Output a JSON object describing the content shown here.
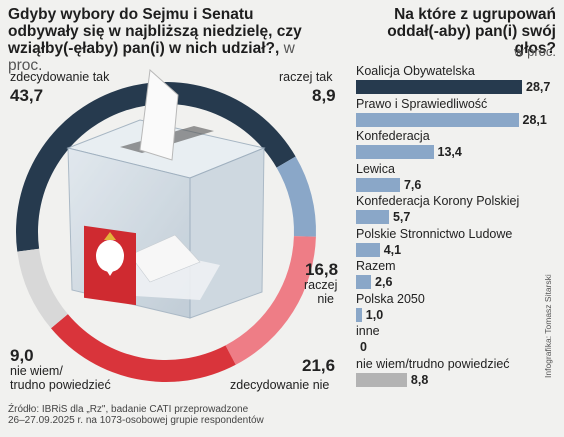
{
  "left": {
    "title": "Gdyby wybory do Sejmu i Senatu odbywały się w najbliższą niedzielę, czy wziąłby(-ęłaby) pan(i) w nich udział?,",
    "unit": "w proc.",
    "chart_data": {
      "type": "pie",
      "title": "Gdyby wybory do Sejmu i Senatu odbywały się w najbliższą niedzielę, czy wziąłby(-ęłaby) pan(i) w nich udział?",
      "categories": [
        "zdecydowanie tak",
        "raczej tak",
        "raczej nie",
        "zdecydowanie nie",
        "nie wiem/ trudno powiedzieć"
      ],
      "values": [
        43.7,
        8.9,
        16.8,
        21.6,
        9.0
      ],
      "colors": [
        "#263a4e",
        "#8aa7c8",
        "#ee7d86",
        "#d9343b",
        "#d8d8d8"
      ],
      "value_labels": [
        "43,7",
        "8,9",
        "16,8",
        "21,6",
        "9,0"
      ]
    },
    "labels": {
      "zt": "zdecydowanie tak",
      "zt_val": "43,7",
      "rt": "raczej tak",
      "rt_val": "8,9",
      "rn_val": "16,8",
      "rn1": "raczej",
      "rn2": "nie",
      "zn_val": "21,6",
      "zn": "zdecydowanie nie",
      "nw_val": "9,0",
      "nw1": "nie wiem/",
      "nw2": "trudno powiedzieć"
    }
  },
  "right": {
    "title": "Na które z ugrupowań oddał(-aby) pan(i) swój głos?",
    "unit": "w proc.",
    "chart_data": {
      "type": "bar",
      "title": "Na które z ugrupowań oddał(-aby) pan(i) swój głos?",
      "categories": [
        "Koalicja Obywatelska",
        "Prawo i Sprawiedliwość",
        "Konfederacja",
        "Lewica",
        "Konfederacja Korony Polskiej",
        "Polskie Stronnictwo Ludowe",
        "Razem",
        "Polska 2050",
        "inne",
        "nie wiem/trudno powiedzieć"
      ],
      "values": [
        28.7,
        28.1,
        13.4,
        7.6,
        5.7,
        4.1,
        2.6,
        1.0,
        0,
        8.8
      ],
      "value_labels": [
        "28,7",
        "28,1",
        "13,4",
        "7,6",
        "5,7",
        "4,1",
        "2,6",
        "1,0",
        "0",
        "8,8"
      ],
      "colors": [
        "#263a4e",
        "#8aa7c8",
        "#8aa7c8",
        "#8aa7c8",
        "#8aa7c8",
        "#8aa7c8",
        "#8aa7c8",
        "#8aa7c8",
        "#8aa7c8",
        "#b3b3b3"
      ],
      "xlim": [
        0,
        28.7
      ]
    }
  },
  "source": {
    "line1": "Źródło: IBRiS dla „Rz\", badanie CATI przeprowadzone",
    "line2": "26–27.09.2025 r. na 1073-osobowej grupie respondentów"
  },
  "credit": "Infografika: Tomasz Sitarski"
}
